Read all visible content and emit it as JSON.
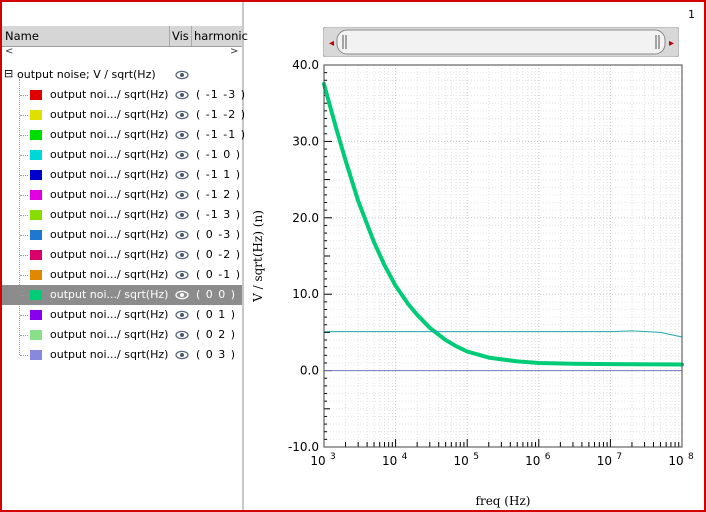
{
  "header": {
    "col_name": "Name",
    "col_vis": "Vis",
    "col_harmonic": "harmonic",
    "sub_left": "<",
    "sub_right": ">"
  },
  "tree": {
    "root_toggle": "⊟",
    "root_label": "output noise; V / sqrt(Hz)",
    "items": [
      {
        "label": "output noi.../ sqrt(Hz)",
        "harmonic": "( -1 -3 )",
        "color": "#e00000"
      },
      {
        "label": "output noi.../ sqrt(Hz)",
        "harmonic": "( -1 -2 )",
        "color": "#e0e000"
      },
      {
        "label": "output noi.../ sqrt(Hz)",
        "harmonic": "( -1 -1 )",
        "color": "#00dd00"
      },
      {
        "label": "output noi.../ sqrt(Hz)",
        "harmonic": "( -1 0 )",
        "color": "#00d8d8"
      },
      {
        "label": "output noi.../ sqrt(Hz)",
        "harmonic": "( -1 1 )",
        "color": "#0000cc"
      },
      {
        "label": "output noi.../ sqrt(Hz)",
        "harmonic": "( -1 2 )",
        "color": "#e000e0"
      },
      {
        "label": "output noi.../ sqrt(Hz)",
        "harmonic": "( -1 3 )",
        "color": "#88dd00"
      },
      {
        "label": "output noi.../ sqrt(Hz)",
        "harmonic": "( 0 -3 )",
        "color": "#1e78d0"
      },
      {
        "label": "output noi.../ sqrt(Hz)",
        "harmonic": "( 0 -2 )",
        "color": "#d8006a"
      },
      {
        "label": "output noi.../ sqrt(Hz)",
        "harmonic": "( 0 -1 )",
        "color": "#e08800"
      },
      {
        "label": "output noi.../ sqrt(Hz)",
        "harmonic": "( 0 0 )",
        "color": "#00cc77",
        "selected": true
      },
      {
        "label": "output noi.../ sqrt(Hz)",
        "harmonic": "( 0 1 )",
        "color": "#8800ee"
      },
      {
        "label": "output noi.../ sqrt(Hz)",
        "harmonic": "( 0 2 )",
        "color": "#88e088"
      },
      {
        "label": "output noi.../ sqrt(Hz)",
        "harmonic": "( 0 3 )",
        "color": "#8888dd"
      }
    ]
  },
  "top_number": "1",
  "scrollbar": {
    "left_arrow": "◂",
    "right_arrow": "▸"
  },
  "chart_data": {
    "type": "line",
    "xlabel": "freq (Hz)",
    "ylabel": "V / sqrt(Hz) (n)",
    "xscale": "log",
    "xlim": [
      1000,
      100000000
    ],
    "ylim": [
      -10,
      40
    ],
    "yticks": [
      "40.0",
      "30.0",
      "20.0",
      "10.0",
      "0.0",
      "-10.0"
    ],
    "xticks": [
      {
        "base": "10",
        "exp": "3"
      },
      {
        "base": "10",
        "exp": "4"
      },
      {
        "base": "10",
        "exp": "5"
      },
      {
        "base": "10",
        "exp": "6"
      },
      {
        "base": "10",
        "exp": "7"
      },
      {
        "base": "10",
        "exp": "8"
      }
    ],
    "grid": true,
    "series": [
      {
        "color": "#00cc77",
        "x": [
          1000,
          1500,
          2000,
          3000,
          5000,
          7000,
          10000,
          15000,
          20000,
          30000,
          50000,
          70000,
          100000,
          200000,
          500000,
          1000000,
          3000000,
          10000000,
          100000000
        ],
        "y": [
          37.5,
          31.5,
          27.5,
          22.2,
          16.8,
          13.8,
          11.1,
          8.7,
          7.3,
          5.6,
          4.0,
          3.2,
          2.5,
          1.7,
          1.2,
          1.0,
          0.9,
          0.85,
          0.8
        ]
      },
      {
        "color": "#22aaaa",
        "x": [
          1000,
          100000,
          10000000,
          20000000,
          50000000,
          100000000
        ],
        "y": [
          5.1,
          5.1,
          5.1,
          5.2,
          5.0,
          4.4
        ]
      },
      {
        "color": "#7777cc",
        "x": [
          1000,
          100000000
        ],
        "y": [
          0,
          0
        ]
      }
    ]
  }
}
